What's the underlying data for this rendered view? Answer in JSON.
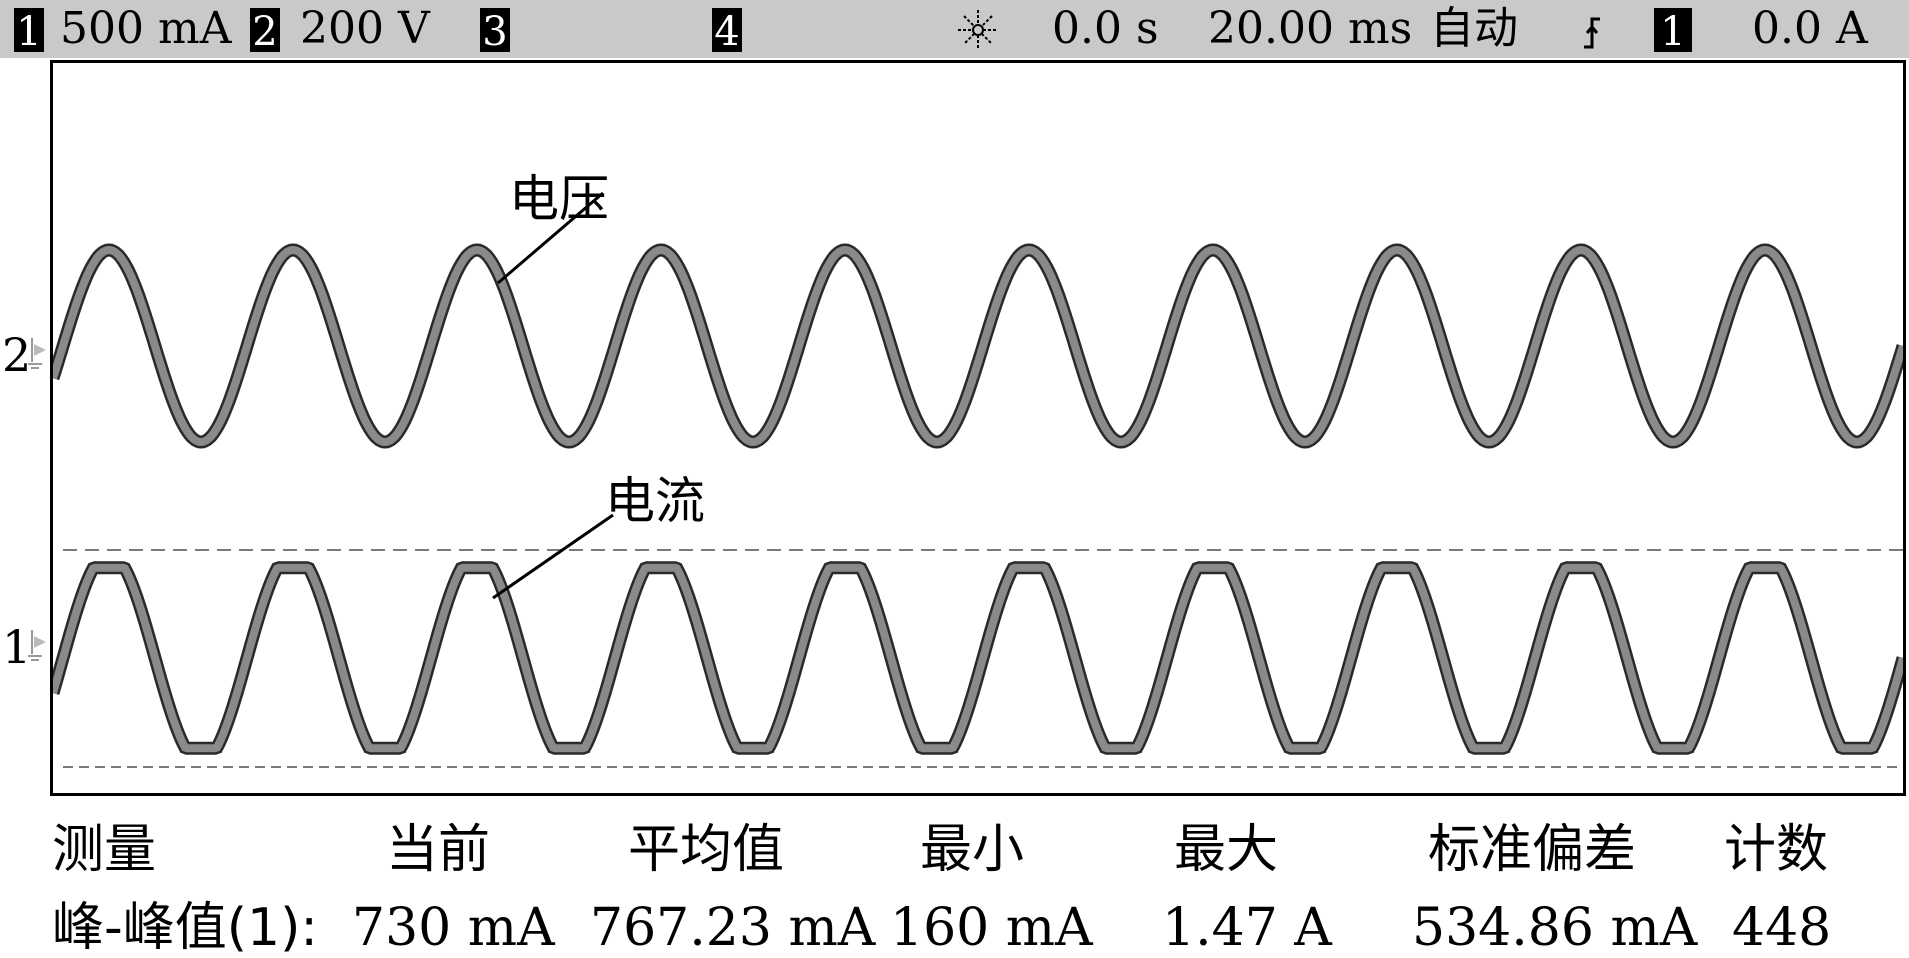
{
  "statusbar": {
    "ch1": {
      "badge": "1",
      "scale": "500 mA"
    },
    "ch2": {
      "badge": "2",
      "scale": "200 V"
    },
    "ch3": {
      "badge": "3"
    },
    "ch4": {
      "badge": "4"
    },
    "delay": "0.0 s",
    "timebase": "20.00 ms",
    "mode": "自动",
    "trigger_source_badge": "1",
    "trigger_level": "0.0 A",
    "icons": [
      "run-status-icon",
      "trigger-edge-icon"
    ]
  },
  "plot": {
    "voltage_label": "电压",
    "current_label": "电流",
    "ch2_marker": "2",
    "ch1_marker": "1"
  },
  "measurements": {
    "headers": [
      "测量",
      "当前",
      "平均值",
      "最小",
      "最大",
      "标准偏差",
      "计数"
    ],
    "row": {
      "name": "峰-峰值(1):",
      "current": "730 mA",
      "mean": "767.23 mA",
      "min": "160 mA",
      "max": "1.47 A",
      "std_dev": "534.86 mA",
      "count": "448"
    }
  },
  "colors": {
    "statusbar_bg": "#c9c9c9",
    "trace": "#8a8a8a",
    "trace_dark": "#2a2a2a",
    "cursor_dash": "#7a7a7a"
  }
}
